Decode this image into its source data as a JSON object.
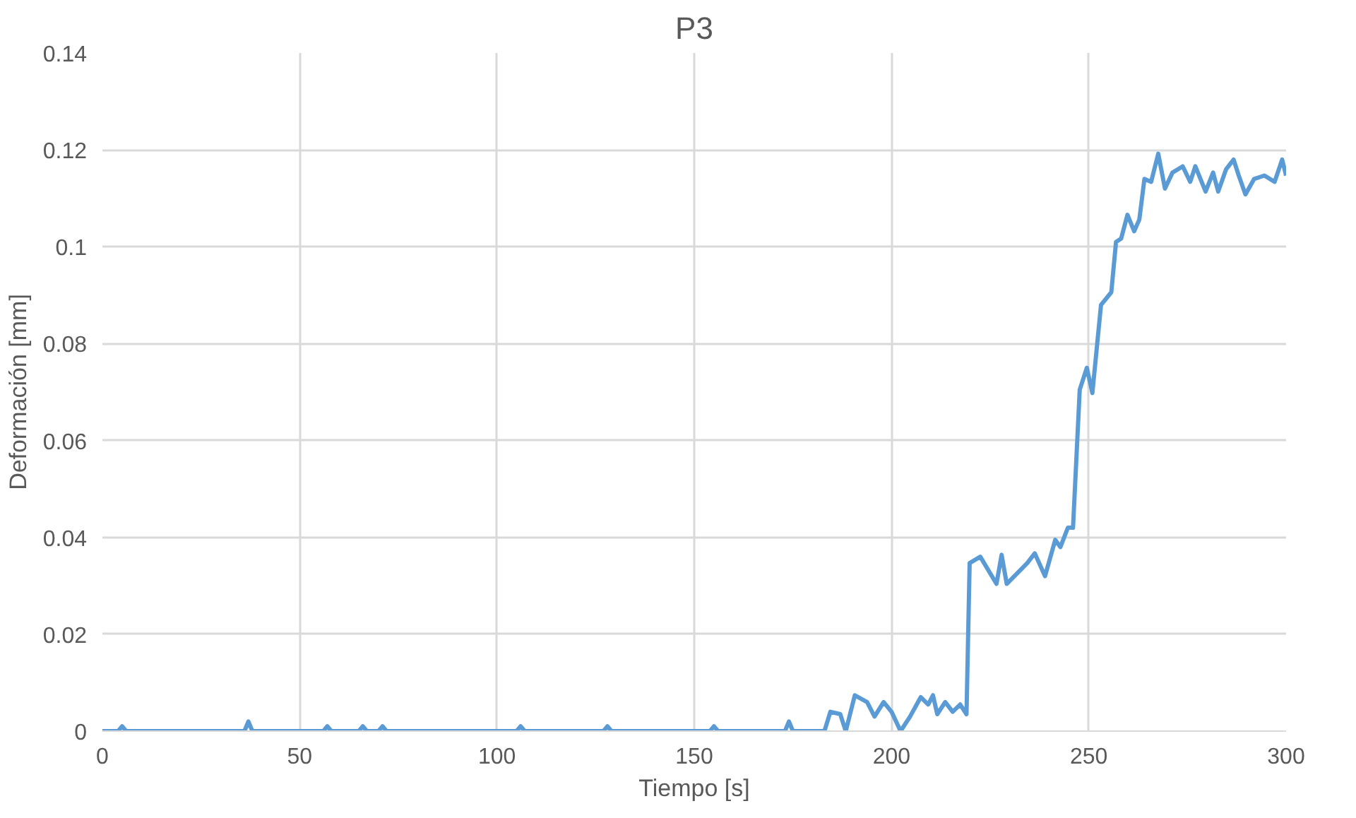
{
  "chart_data": {
    "type": "line",
    "title": "P3",
    "xlabel": "Tiempo [s]",
    "ylabel": "Deformación [mm]",
    "xlim": [
      0,
      300
    ],
    "ylim": [
      0,
      0.14
    ],
    "xticks": [
      0,
      50,
      100,
      150,
      200,
      250,
      300
    ],
    "yticks": [
      0,
      0.02,
      0.04,
      0.06,
      0.08,
      0.1,
      0.12,
      0.14
    ],
    "grid": true,
    "marker": "none",
    "line_style": "solid",
    "series": [
      {
        "color": "#5b9bd5",
        "x": [
          0,
          4,
          5,
          6,
          36,
          37,
          38,
          56,
          57,
          58,
          65,
          66,
          67,
          70,
          71,
          72,
          105,
          106,
          107,
          127,
          128,
          129,
          154,
          155,
          156,
          173,
          174,
          175,
          183,
          184.5,
          187,
          188.4,
          190.7,
          193.8,
          195.7,
          198,
          200,
          202.3,
          204.7,
          207.4,
          209.3,
          210.5,
          211.6,
          213.6,
          215.5,
          217.4,
          219,
          219.8,
          222.5,
          226.6,
          227.9,
          229.2,
          234.4,
          236.3,
          238.9,
          241.5,
          242.8,
          244.7,
          246,
          247.7,
          249.5,
          250.9,
          253.1,
          255.7,
          256.9,
          258.2,
          259.8,
          261.5,
          262.8,
          264.1,
          265.8,
          267.6,
          269.3,
          271.2,
          273.8,
          275.7,
          277,
          279.6,
          281.5,
          282.8,
          284.8,
          286.7,
          288,
          289.7,
          291.9,
          294.5,
          297.1,
          299,
          300
        ],
        "values": [
          0,
          0,
          0.001,
          0,
          0,
          0.002,
          0,
          0,
          0.001,
          0,
          0,
          0.001,
          0,
          0,
          0.001,
          0,
          0,
          0.001,
          0,
          0,
          0.001,
          0,
          0,
          0.001,
          0,
          0,
          0.002,
          0,
          0,
          0.004,
          0.0035,
          0,
          0.0074,
          0.006,
          0.003,
          0.006,
          0.004,
          0,
          0.003,
          0.007,
          0.0055,
          0.0074,
          0.0035,
          0.006,
          0.004,
          0.0055,
          0.0035,
          0.0347,
          0.036,
          0.0304,
          0.0364,
          0.0304,
          0.0347,
          0.0367,
          0.032,
          0.0395,
          0.038,
          0.042,
          0.042,
          0.0705,
          0.075,
          0.0698,
          0.088,
          0.0906,
          0.101,
          0.1017,
          0.1066,
          0.1032,
          0.1056,
          0.114,
          0.1134,
          0.1192,
          0.112,
          0.1153,
          0.1166,
          0.1134,
          0.1166,
          0.1114,
          0.1153,
          0.1114,
          0.116,
          0.118,
          0.1147,
          0.1108,
          0.114,
          0.1147,
          0.1134,
          0.118,
          0.1147
        ]
      }
    ]
  }
}
